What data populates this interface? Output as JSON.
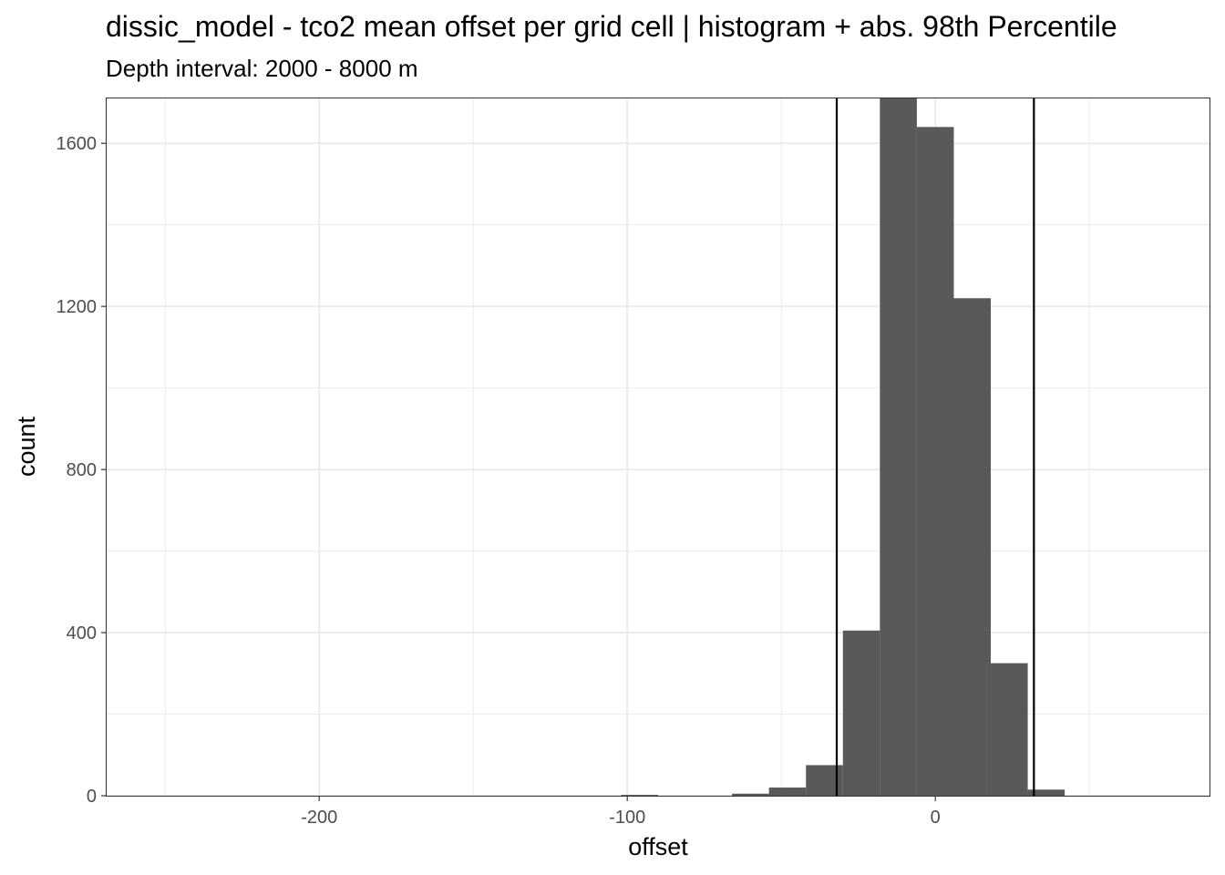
{
  "chart_data": {
    "type": "bar",
    "title": "dissic_model  -  tco2 mean offset per grid cell | histogram + abs. 98th Percentile",
    "subtitle": "Depth interval: 2000 - 8000 m",
    "xlabel": "offset",
    "ylabel": "count",
    "xlim": [
      -269,
      89
    ],
    "ylim": [
      0,
      1710
    ],
    "x_ticks": [
      -200,
      -100,
      0
    ],
    "x_tick_labels": [
      "-200",
      "-100",
      "0"
    ],
    "y_ticks": [
      0,
      400,
      800,
      1200,
      1600
    ],
    "y_tick_labels": [
      "0",
      "400",
      "800",
      "1200",
      "1600"
    ],
    "grid": true,
    "bin_width": 12,
    "bins": [
      {
        "x0": -102,
        "x1": -90,
        "count": 2
      },
      {
        "x0": -66,
        "x1": -54,
        "count": 5
      },
      {
        "x0": -54,
        "x1": -42,
        "count": 20
      },
      {
        "x0": -42,
        "x1": -30,
        "count": 75
      },
      {
        "x0": -30,
        "x1": -18,
        "count": 405
      },
      {
        "x0": -18,
        "x1": -6,
        "count": 1710
      },
      {
        "x0": -6,
        "x1": 6,
        "count": 1640
      },
      {
        "x0": 6,
        "x1": 18,
        "count": 1220
      },
      {
        "x0": 18,
        "x1": 30,
        "count": 325
      },
      {
        "x0": 30,
        "x1": 42,
        "count": 15
      }
    ],
    "percentile_lines": [
      -32,
      32
    ],
    "colors": {
      "bar": "#595959",
      "line": "#000000",
      "grid": "#ebebeb",
      "border": "#333333"
    }
  }
}
